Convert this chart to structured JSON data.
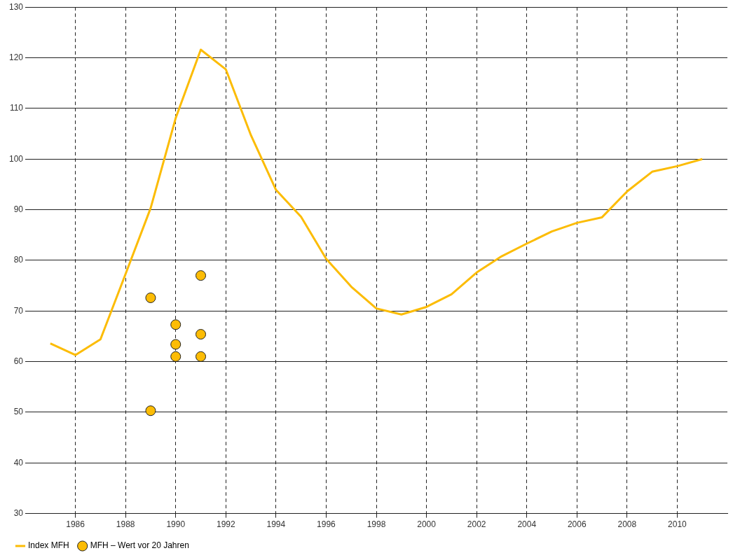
{
  "chart_data": {
    "type": "line",
    "xlim": [
      1984,
      2012
    ],
    "xticks": [
      1986,
      1988,
      1990,
      1992,
      1994,
      1996,
      1998,
      2000,
      2002,
      2004,
      2006,
      2008,
      2010
    ],
    "ylim": [
      30,
      130
    ],
    "yticks": [
      30,
      40,
      50,
      60,
      70,
      80,
      90,
      100,
      110,
      120,
      130
    ],
    "grid": true,
    "legend": "bottom left",
    "series": [
      {
        "name": "Index MFH",
        "color": "#fcbc05",
        "marker": "none",
        "x": [
          1985,
          1986,
          1987,
          1988,
          1989,
          1990,
          1991,
          1992,
          1993,
          1994,
          1995,
          1996,
          1997,
          1998,
          1999,
          2000,
          2001,
          2002,
          2003,
          2004,
          2005,
          2006,
          2007,
          2008,
          2009,
          2010,
          2011
        ],
        "values": [
          63.6,
          61.3,
          64.4,
          77.3,
          90.3,
          108.1,
          121.6,
          117.7,
          104.7,
          93.9,
          88.6,
          80.3,
          74.8,
          70.5,
          69.3,
          70.8,
          73.3,
          77.6,
          80.8,
          83.3,
          85.7,
          87.4,
          88.5,
          93.6,
          97.5,
          98.6,
          100
        ]
      },
      {
        "name": "MFH – Wert vor 20 Jahren",
        "type": "scatter",
        "color": "#fcbc05",
        "marker": "circle",
        "x": [
          1989,
          1989,
          1990,
          1990,
          1990,
          1991,
          1991,
          1991
        ],
        "values": [
          72.6,
          50.3,
          67.3,
          63.4,
          61.0,
          77.0,
          65.4,
          61.0
        ]
      }
    ]
  }
}
